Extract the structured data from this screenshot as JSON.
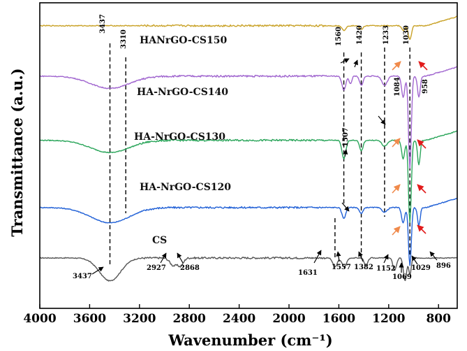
{
  "chart_data": {
    "type": "line",
    "title": "",
    "xlabel": "Wavenumber (cm⁻¹)",
    "ylabel": "Transmittance (a.u.)",
    "xlim": [
      4000,
      650
    ],
    "x_ticks": [
      "4000",
      "3600",
      "3200",
      "2800",
      "2400",
      "2000",
      "1600",
      "1200",
      "800"
    ],
    "series": [
      {
        "name": "CS",
        "label": "CS",
        "color": "#555555",
        "baseline": 0.165,
        "features": [
          {
            "x": 3437,
            "depth": 0.075,
            "width": 120
          },
          {
            "x": 2927,
            "depth": 0.025,
            "width": 40
          },
          {
            "x": 2868,
            "depth": 0.025,
            "width": 30
          },
          {
            "x": 1631,
            "depth": 0.03,
            "width": 25
          },
          {
            "x": 1557,
            "depth": 0.03,
            "width": 25
          },
          {
            "x": 1382,
            "depth": 0.025,
            "width": 20
          },
          {
            "x": 1152,
            "depth": 0.04,
            "width": 20
          },
          {
            "x": 1069,
            "depth": 0.075,
            "width": 18
          },
          {
            "x": 1029,
            "depth": 0.055,
            "width": 14
          }
        ]
      },
      {
        "name": "HA-NrGO-CS120",
        "label": "HA-NrGO-CS120",
        "color": "#1f5fd6",
        "baseline": 0.33,
        "features": [
          {
            "x": 3437,
            "depth": 0.05,
            "width": 220
          },
          {
            "x": 1560,
            "depth": 0.035,
            "width": 22
          },
          {
            "x": 1420,
            "depth": 0.02,
            "width": 20
          },
          {
            "x": 1233,
            "depth": 0.015,
            "width": 30
          },
          {
            "x": 1084,
            "depth": 0.05,
            "width": 18
          },
          {
            "x": 1030,
            "depth": 0.19,
            "width": 16
          },
          {
            "x": 958,
            "depth": 0.06,
            "width": 15
          }
        ]
      },
      {
        "name": "HA-NrGO-CS130",
        "label": "HA-NrGO-CS130",
        "color": "#2aa55a",
        "baseline": 0.55,
        "features": [
          {
            "x": 3437,
            "depth": 0.04,
            "width": 220
          },
          {
            "x": 1560,
            "depth": 0.06,
            "width": 22
          },
          {
            "x": 1420,
            "depth": 0.035,
            "width": 20
          },
          {
            "x": 1233,
            "depth": 0.02,
            "width": 30
          },
          {
            "x": 1084,
            "depth": 0.06,
            "width": 18
          },
          {
            "x": 1030,
            "depth": 0.27,
            "width": 16
          },
          {
            "x": 958,
            "depth": 0.08,
            "width": 15
          }
        ]
      },
      {
        "name": "HA-NrGO-CS140",
        "label": "HA-NrGO-CS140",
        "color": "#a065cf",
        "baseline": 0.76,
        "features": [
          {
            "x": 3437,
            "depth": 0.04,
            "width": 220
          },
          {
            "x": 1560,
            "depth": 0.045,
            "width": 22
          },
          {
            "x": 1507,
            "depth": 0.025,
            "width": 15
          },
          {
            "x": 1420,
            "depth": 0.03,
            "width": 20
          },
          {
            "x": 1233,
            "depth": 0.03,
            "width": 30
          },
          {
            "x": 1084,
            "depth": 0.07,
            "width": 18
          },
          {
            "x": 1030,
            "depth": 0.3,
            "width": 16
          },
          {
            "x": 958,
            "depth": 0.07,
            "width": 15
          }
        ]
      },
      {
        "name": "HA-NrGO-CS150",
        "label": "HANrGO-CS150",
        "color": "#c9a227",
        "baseline": 0.925,
        "features": [
          {
            "x": 1560,
            "depth": 0.015,
            "width": 22
          },
          {
            "x": 1420,
            "depth": 0.012,
            "width": 20
          },
          {
            "x": 1084,
            "depth": 0.015,
            "width": 18
          },
          {
            "x": 1030,
            "depth": 0.045,
            "width": 18
          }
        ]
      }
    ],
    "reference_lines": [
      3437,
      3310,
      1631,
      1560,
      1420,
      1233,
      1030
    ],
    "annotations": {
      "top": [
        "3437",
        "3310",
        "1560",
        "1420",
        "1233",
        "1030"
      ],
      "middle": [
        "1084",
        "958",
        "1507"
      ],
      "bottom": [
        "3437",
        "2927",
        "2868",
        "1631",
        "1557",
        "1382",
        "1152",
        "1069",
        "1029",
        "896"
      ]
    }
  }
}
